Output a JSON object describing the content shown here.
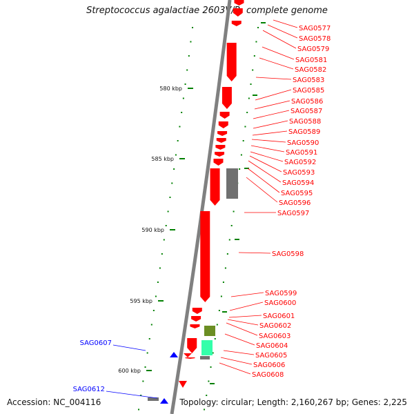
{
  "title": "Streptococcus agalactiae 2603V/R, complete genome",
  "footer": {
    "accession": "Accession: NC_004116",
    "topology": "Topology: circular; Length: 2,160,267 bp; Genes: 2,225"
  },
  "colors": {
    "forward_gene": "#ff0000",
    "reverse_gene": "#0000ff",
    "backbone": "#808080",
    "scale_tick": "#008000",
    "rna_gray": "#707070",
    "olive_gene": "#6b8e23",
    "teal_gene": "#33ffaa"
  },
  "scale_labels": [
    "580 kbp",
    "585 kbp",
    "590 kbp",
    "595 kbp",
    "600 kbp"
  ],
  "forward_labels": [
    "SAG0577",
    "SAG0578",
    "SAG0579",
    "SAG0581",
    "SAG0582",
    "SAG0583",
    "SAG0585",
    "SAG0586",
    "SAG0587",
    "SAG0588",
    "SAG0589",
    "SAG0590",
    "SAG0591",
    "SAG0592",
    "SAG0593",
    "SAG0594",
    "SAG0595",
    "SAG0596",
    "SAG0597",
    "SAG0598",
    "SAG0599",
    "SAG0600",
    "SAG0601",
    "SAG0602",
    "SAG0603",
    "SAG0604",
    "SAG0605",
    "SAG0606",
    "SAG0608"
  ],
  "reverse_labels": [
    "SAG0607",
    "SAG0612"
  ]
}
